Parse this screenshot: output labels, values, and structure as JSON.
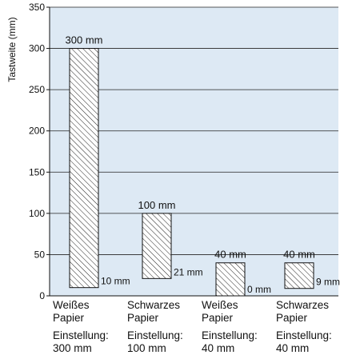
{
  "chart_data": {
    "type": "bar",
    "ylabel": "Tastweite (mm)",
    "ylim": [
      0,
      350
    ],
    "yticks": [
      0,
      50,
      100,
      150,
      200,
      250,
      300,
      350
    ],
    "grid": true,
    "bars": [
      {
        "top_label": "300 mm",
        "upper": 300,
        "lower": 10,
        "lower_label": "10 mm"
      },
      {
        "top_label": "100 mm",
        "upper": 100,
        "lower": 21,
        "lower_label": "21 mm"
      },
      {
        "top_label": "40 mm",
        "upper": 40,
        "lower": 0,
        "lower_label": "0 mm"
      },
      {
        "top_label": "40 mm",
        "upper": 40,
        "lower": 9,
        "lower_label": "9 mm"
      }
    ],
    "categories": [
      {
        "lines": [
          "Weißes",
          "Papier",
          "Einstellung:",
          "300 mm"
        ]
      },
      {
        "lines": [
          "Schwarzes",
          "Papier",
          "Einstellung:",
          "100 mm"
        ]
      },
      {
        "lines": [
          "Weißes",
          "Papier",
          "Einstellung:",
          "40 mm"
        ]
      },
      {
        "lines": [
          "Schwarzes",
          "Papier",
          "Einstellung:",
          "40 mm"
        ]
      }
    ],
    "colors": {
      "plot_bg": "#dde9f4",
      "grid": "#222222",
      "bar_fill": "#ffffff",
      "hatch": "#222222"
    }
  }
}
